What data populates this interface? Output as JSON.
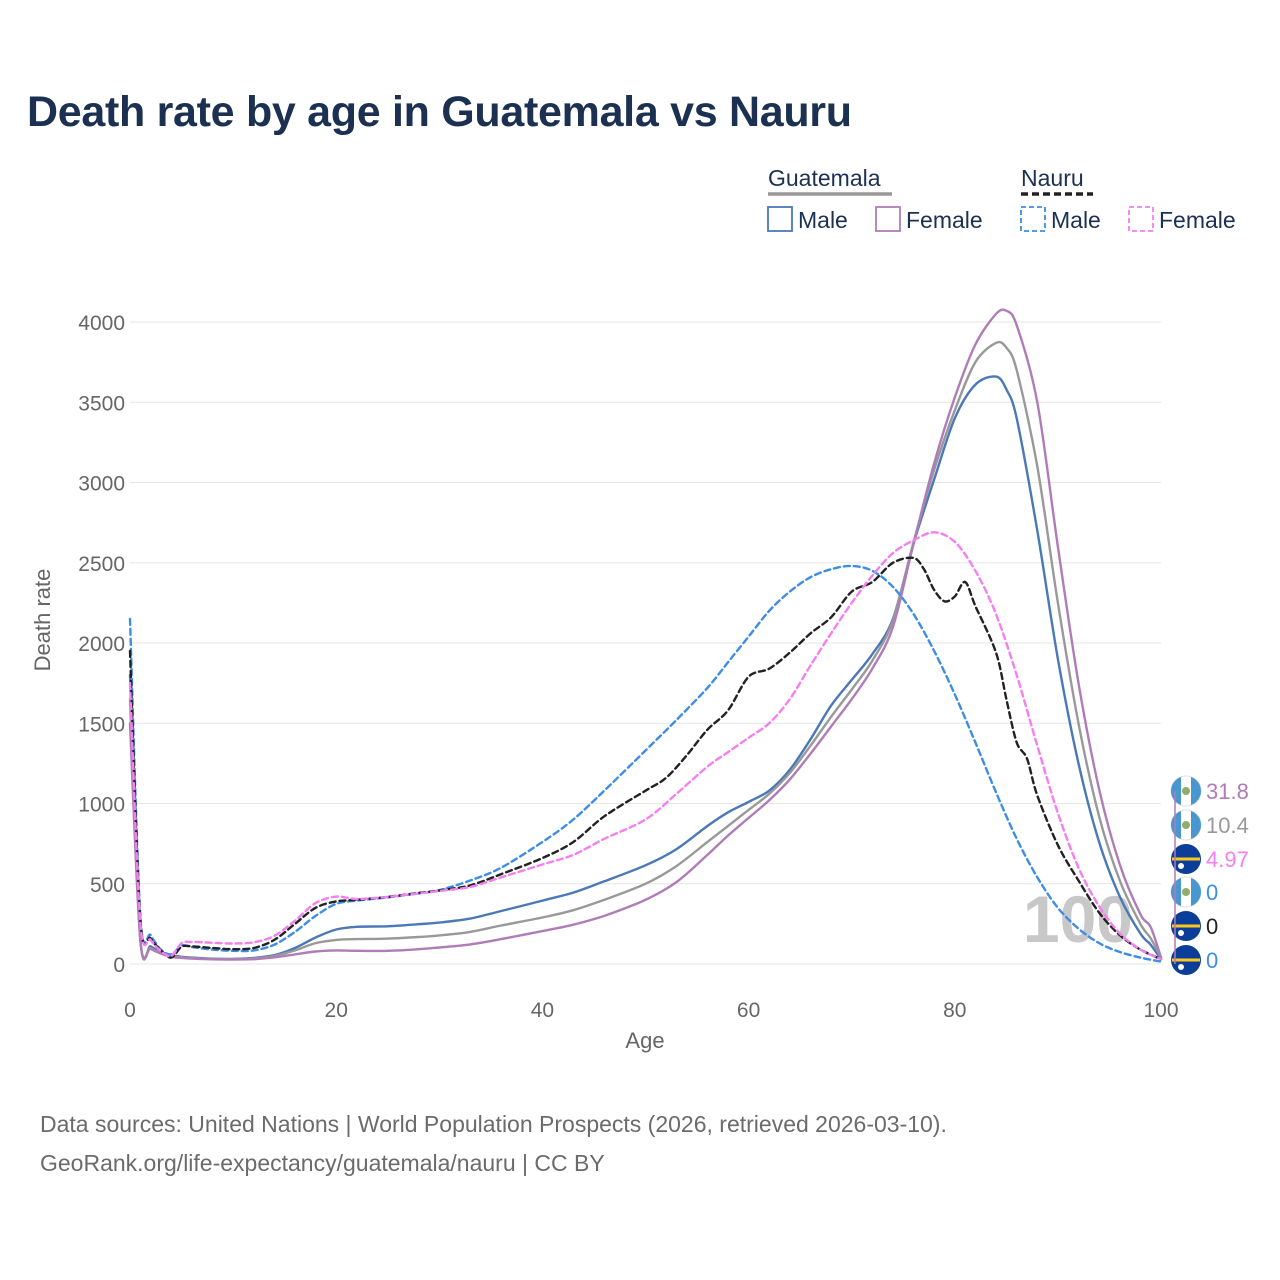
{
  "title": "Death rate by age in Guatemala vs Nauru",
  "footer": {
    "line1": "Data sources: United Nations | World Population Prospects (2026, retrieved 2026-03-10).",
    "line2": "GeoRank.org/life-expectancy/guatemala/nauru | CC BY"
  },
  "legend": {
    "groups": [
      {
        "label": "Guatemala",
        "color": "#999999",
        "dash": false,
        "items": [
          {
            "label": "Male",
            "color": "#4a78b8"
          },
          {
            "label": "Female",
            "color": "#b07cb8"
          }
        ]
      },
      {
        "label": "Nauru",
        "color": "#222222",
        "dash": true,
        "items": [
          {
            "label": "Male",
            "color": "#3d8de6"
          },
          {
            "label": "Female",
            "color": "#f57ef0"
          }
        ]
      }
    ]
  },
  "chart_data": {
    "type": "line",
    "title": "Death rate by age in Guatemala vs Nauru",
    "xlabel": "Age",
    "ylabel": "Death rate",
    "xlim": [
      0,
      100
    ],
    "ylim": [
      0,
      4200
    ],
    "xticks": [
      0,
      20,
      40,
      60,
      80,
      100
    ],
    "yticks": [
      0,
      500,
      1000,
      1500,
      2000,
      2500,
      3000,
      3500,
      4000
    ],
    "current_age_label": "100",
    "series": [
      {
        "name": "Guatemala Male",
        "color": "#4a78b8",
        "dash": false,
        "points": [
          [
            0,
            1800
          ],
          [
            1,
            160
          ],
          [
            2,
            110
          ],
          [
            3,
            75
          ],
          [
            4,
            55
          ],
          [
            5,
            45
          ],
          [
            6,
            40
          ],
          [
            8,
            33
          ],
          [
            10,
            32
          ],
          [
            12,
            38
          ],
          [
            14,
            55
          ],
          [
            16,
            100
          ],
          [
            18,
            165
          ],
          [
            20,
            215
          ],
          [
            22,
            232
          ],
          [
            25,
            235
          ],
          [
            28,
            248
          ],
          [
            30,
            258
          ],
          [
            33,
            283
          ],
          [
            36,
            330
          ],
          [
            40,
            395
          ],
          [
            43,
            445
          ],
          [
            46,
            515
          ],
          [
            50,
            615
          ],
          [
            53,
            715
          ],
          [
            56,
            860
          ],
          [
            58,
            945
          ],
          [
            60,
            1010
          ],
          [
            62,
            1080
          ],
          [
            64,
            1210
          ],
          [
            66,
            1400
          ],
          [
            68,
            1610
          ],
          [
            70,
            1770
          ],
          [
            72,
            1930
          ],
          [
            74,
            2150
          ],
          [
            76,
            2620
          ],
          [
            78,
            3020
          ],
          [
            80,
            3400
          ],
          [
            82,
            3610
          ],
          [
            84,
            3660
          ],
          [
            85,
            3580
          ],
          [
            86,
            3400
          ],
          [
            88,
            2700
          ],
          [
            90,
            1900
          ],
          [
            92,
            1250
          ],
          [
            94,
            760
          ],
          [
            96,
            420
          ],
          [
            98,
            190
          ],
          [
            99,
            120
          ],
          [
            100,
            30
          ]
        ]
      },
      {
        "name": "Guatemala Both",
        "color": "#999999",
        "dash": false,
        "points": [
          [
            0,
            1650
          ],
          [
            1,
            155
          ],
          [
            2,
            100
          ],
          [
            3,
            70
          ],
          [
            4,
            50
          ],
          [
            5,
            42
          ],
          [
            6,
            37
          ],
          [
            8,
            31
          ],
          [
            10,
            30
          ],
          [
            12,
            34
          ],
          [
            14,
            50
          ],
          [
            16,
            85
          ],
          [
            18,
            130
          ],
          [
            20,
            150
          ],
          [
            22,
            155
          ],
          [
            25,
            158
          ],
          [
            28,
            168
          ],
          [
            30,
            178
          ],
          [
            33,
            200
          ],
          [
            36,
            240
          ],
          [
            40,
            290
          ],
          [
            43,
            335
          ],
          [
            46,
            400
          ],
          [
            50,
            500
          ],
          [
            53,
            610
          ],
          [
            56,
            760
          ],
          [
            58,
            860
          ],
          [
            60,
            960
          ],
          [
            62,
            1060
          ],
          [
            64,
            1190
          ],
          [
            66,
            1360
          ],
          [
            68,
            1540
          ],
          [
            70,
            1710
          ],
          [
            72,
            1890
          ],
          [
            74,
            2140
          ],
          [
            76,
            2630
          ],
          [
            78,
            3080
          ],
          [
            80,
            3450
          ],
          [
            82,
            3750
          ],
          [
            84,
            3870
          ],
          [
            85,
            3840
          ],
          [
            86,
            3700
          ],
          [
            88,
            3100
          ],
          [
            90,
            2250
          ],
          [
            92,
            1500
          ],
          [
            94,
            920
          ],
          [
            96,
            520
          ],
          [
            98,
            250
          ],
          [
            99,
            160
          ],
          [
            100,
            40
          ]
        ]
      },
      {
        "name": "Guatemala Female",
        "color": "#b07cb8",
        "dash": false,
        "points": [
          [
            0,
            1500
          ],
          [
            1,
            150
          ],
          [
            2,
            95
          ],
          [
            3,
            65
          ],
          [
            4,
            45
          ],
          [
            5,
            38
          ],
          [
            6,
            34
          ],
          [
            8,
            29
          ],
          [
            10,
            28
          ],
          [
            12,
            30
          ],
          [
            14,
            42
          ],
          [
            16,
            60
          ],
          [
            18,
            78
          ],
          [
            20,
            85
          ],
          [
            22,
            82
          ],
          [
            25,
            82
          ],
          [
            28,
            92
          ],
          [
            30,
            103
          ],
          [
            33,
            122
          ],
          [
            36,
            155
          ],
          [
            40,
            205
          ],
          [
            43,
            245
          ],
          [
            46,
            300
          ],
          [
            50,
            400
          ],
          [
            53,
            510
          ],
          [
            56,
            680
          ],
          [
            58,
            800
          ],
          [
            60,
            910
          ],
          [
            62,
            1020
          ],
          [
            64,
            1150
          ],
          [
            66,
            1310
          ],
          [
            68,
            1480
          ],
          [
            70,
            1650
          ],
          [
            72,
            1840
          ],
          [
            74,
            2100
          ],
          [
            76,
            2620
          ],
          [
            78,
            3120
          ],
          [
            80,
            3530
          ],
          [
            82,
            3860
          ],
          [
            84,
            4050
          ],
          [
            85,
            4070
          ],
          [
            86,
            3980
          ],
          [
            88,
            3500
          ],
          [
            90,
            2600
          ],
          [
            92,
            1750
          ],
          [
            94,
            1090
          ],
          [
            96,
            620
          ],
          [
            98,
            310
          ],
          [
            99,
            230
          ],
          [
            100,
            40
          ]
        ]
      },
      {
        "name": "Nauru Male",
        "color": "#3d8de6",
        "dash": true,
        "points": [
          [
            0,
            2150
          ],
          [
            1,
            300
          ],
          [
            2,
            180
          ],
          [
            3,
            90
          ],
          [
            4,
            60
          ],
          [
            5,
            115
          ],
          [
            6,
            105
          ],
          [
            8,
            90
          ],
          [
            10,
            82
          ],
          [
            12,
            85
          ],
          [
            14,
            120
          ],
          [
            16,
            200
          ],
          [
            18,
            300
          ],
          [
            20,
            375
          ],
          [
            22,
            395
          ],
          [
            25,
            415
          ],
          [
            28,
            440
          ],
          [
            30,
            460
          ],
          [
            33,
            520
          ],
          [
            36,
            600
          ],
          [
            40,
            760
          ],
          [
            43,
            900
          ],
          [
            46,
            1080
          ],
          [
            50,
            1330
          ],
          [
            53,
            1520
          ],
          [
            56,
            1720
          ],
          [
            58,
            1880
          ],
          [
            60,
            2040
          ],
          [
            62,
            2200
          ],
          [
            64,
            2320
          ],
          [
            66,
            2410
          ],
          [
            68,
            2460
          ],
          [
            70,
            2480
          ],
          [
            72,
            2450
          ],
          [
            74,
            2350
          ],
          [
            76,
            2180
          ],
          [
            78,
            1950
          ],
          [
            80,
            1680
          ],
          [
            82,
            1380
          ],
          [
            84,
            1070
          ],
          [
            86,
            780
          ],
          [
            88,
            540
          ],
          [
            90,
            350
          ],
          [
            92,
            220
          ],
          [
            94,
            130
          ],
          [
            96,
            75
          ],
          [
            98,
            40
          ],
          [
            100,
            15
          ]
        ]
      },
      {
        "name": "Nauru Both",
        "color": "#222222",
        "dash": true,
        "points": [
          [
            0,
            1950
          ],
          [
            1,
            280
          ],
          [
            2,
            160
          ],
          [
            3,
            85
          ],
          [
            4,
            40
          ],
          [
            5,
            108
          ],
          [
            6,
            110
          ],
          [
            8,
            100
          ],
          [
            10,
            92
          ],
          [
            12,
            100
          ],
          [
            14,
            150
          ],
          [
            16,
            250
          ],
          [
            18,
            350
          ],
          [
            20,
            390
          ],
          [
            22,
            400
          ],
          [
            25,
            418
          ],
          [
            28,
            443
          ],
          [
            30,
            458
          ],
          [
            33,
            490
          ],
          [
            36,
            560
          ],
          [
            40,
            660
          ],
          [
            43,
            760
          ],
          [
            46,
            920
          ],
          [
            50,
            1080
          ],
          [
            52,
            1160
          ],
          [
            54,
            1300
          ],
          [
            56,
            1460
          ],
          [
            58,
            1580
          ],
          [
            60,
            1790
          ],
          [
            62,
            1840
          ],
          [
            64,
            1940
          ],
          [
            66,
            2060
          ],
          [
            68,
            2160
          ],
          [
            70,
            2320
          ],
          [
            72,
            2380
          ],
          [
            74,
            2500
          ],
          [
            76,
            2530
          ],
          [
            77,
            2460
          ],
          [
            78,
            2330
          ],
          [
            79,
            2260
          ],
          [
            80,
            2290
          ],
          [
            81,
            2380
          ],
          [
            82,
            2230
          ],
          [
            84,
            1940
          ],
          [
            85,
            1650
          ],
          [
            86,
            1380
          ],
          [
            87,
            1280
          ],
          [
            88,
            1050
          ],
          [
            90,
            740
          ],
          [
            92,
            520
          ],
          [
            94,
            320
          ],
          [
            96,
            180
          ],
          [
            98,
            90
          ],
          [
            100,
            30
          ]
        ]
      },
      {
        "name": "Nauru Female",
        "color": "#f57ef0",
        "dash": true,
        "points": [
          [
            0,
            1750
          ],
          [
            1,
            260
          ],
          [
            2,
            150
          ],
          [
            3,
            80
          ],
          [
            4,
            50
          ],
          [
            5,
            130
          ],
          [
            6,
            138
          ],
          [
            8,
            132
          ],
          [
            10,
            128
          ],
          [
            12,
            135
          ],
          [
            14,
            175
          ],
          [
            16,
            270
          ],
          [
            18,
            380
          ],
          [
            20,
            420
          ],
          [
            22,
            405
          ],
          [
            25,
            418
          ],
          [
            28,
            440
          ],
          [
            30,
            455
          ],
          [
            33,
            480
          ],
          [
            36,
            540
          ],
          [
            40,
            620
          ],
          [
            43,
            680
          ],
          [
            46,
            780
          ],
          [
            50,
            900
          ],
          [
            53,
            1060
          ],
          [
            56,
            1230
          ],
          [
            58,
            1320
          ],
          [
            60,
            1410
          ],
          [
            62,
            1500
          ],
          [
            64,
            1650
          ],
          [
            66,
            1860
          ],
          [
            68,
            2060
          ],
          [
            70,
            2250
          ],
          [
            72,
            2420
          ],
          [
            74,
            2560
          ],
          [
            76,
            2640
          ],
          [
            78,
            2690
          ],
          [
            80,
            2630
          ],
          [
            82,
            2450
          ],
          [
            84,
            2180
          ],
          [
            86,
            1800
          ],
          [
            88,
            1360
          ],
          [
            90,
            940
          ],
          [
            92,
            600
          ],
          [
            94,
            360
          ],
          [
            96,
            190
          ],
          [
            98,
            90
          ],
          [
            100,
            30
          ]
        ]
      }
    ],
    "end_markers": [
      {
        "value": "31.8",
        "color": "#b07cb8",
        "flag": "guatemala"
      },
      {
        "value": "10.4",
        "color": "#999999",
        "flag": "guatemala"
      },
      {
        "value": "4.97",
        "color": "#f57ef0",
        "flag": "nauru"
      },
      {
        "value": "0",
        "color": "#3d8de6",
        "flag": "guatemala"
      },
      {
        "value": "0",
        "color": "#222222",
        "flag": "nauru"
      },
      {
        "value": "0",
        "color": "#3d8de6",
        "flag": "nauru"
      }
    ]
  }
}
